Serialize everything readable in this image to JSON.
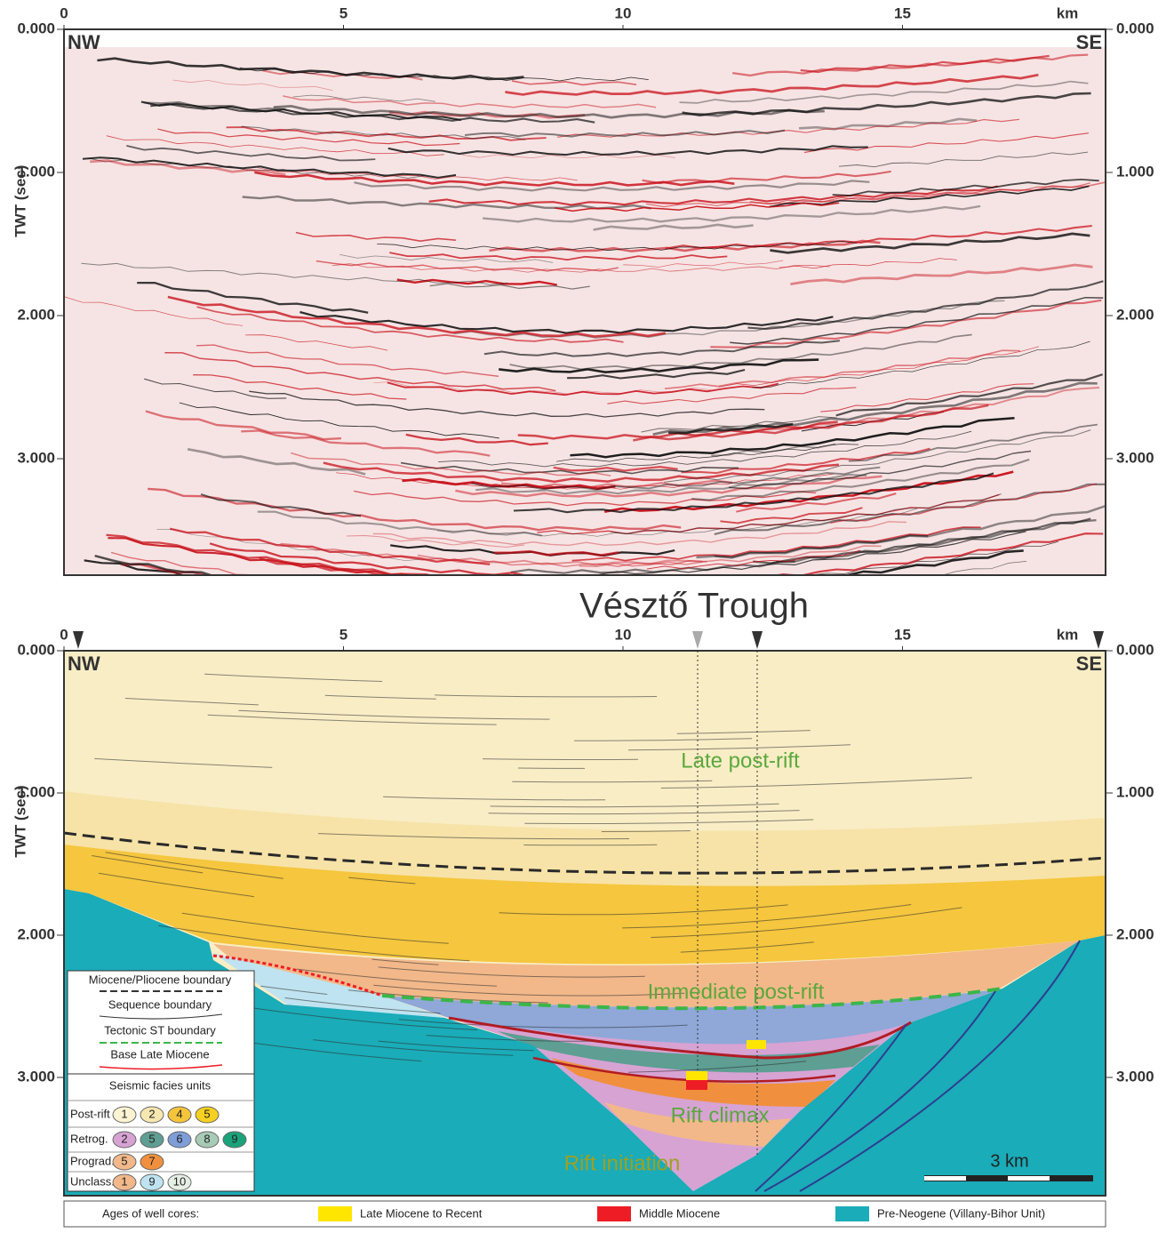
{
  "figure": {
    "x_ticks": [
      0,
      5,
      10,
      15
    ],
    "x_unit": "km",
    "y_ticks": [
      {
        "value": 0,
        "label": "0.000"
      },
      {
        "value": 1,
        "label": "1.000"
      },
      {
        "value": 2,
        "label": "2.000"
      },
      {
        "value": 3,
        "label": "3.000"
      }
    ],
    "y_label": "TWT (sec)",
    "left_end": "NW",
    "right_end": "SE",
    "title": "Vésztő Trough",
    "units": {
      "late_post_rift": "Late post-rift",
      "immediate_post_rift": "Immediate post-rift",
      "rift_climax": "Rift climax",
      "rift_initiation": "Rift initiation"
    },
    "scale_bar": "3 km",
    "legend": {
      "lines": [
        "Miocene/Pliocene boundary",
        "Sequence boundary",
        "Tectonic ST boundary",
        "Base Late Miocene"
      ],
      "facies_title": "Seismic facies units",
      "facies_rows": [
        {
          "name": "Post-rift",
          "units": [
            {
              "label": "1",
              "color": "#fbf3d2"
            },
            {
              "label": "2",
              "color": "#f6e7b0"
            },
            {
              "label": "4",
              "color": "#f4c43a"
            },
            {
              "label": "5",
              "color": "#f5d020"
            }
          ]
        },
        {
          "name": "Retrog.",
          "units": [
            {
              "label": "2",
              "color": "#d7a3d3"
            },
            {
              "label": "5",
              "color": "#5e9e93"
            },
            {
              "label": "6",
              "color": "#7f9ed8"
            },
            {
              "label": "8",
              "color": "#a7cbb6"
            },
            {
              "label": "9",
              "color": "#1aa37a"
            }
          ]
        },
        {
          "name": "Prograd.",
          "units": [
            {
              "label": "5",
              "color": "#f2b88a"
            },
            {
              "label": "7",
              "color": "#f0903e"
            }
          ]
        },
        {
          "name": "Unclass.",
          "units": [
            {
              "label": "1",
              "color": "#f2b88a"
            },
            {
              "label": "9",
              "color": "#bfe3f0"
            },
            {
              "label": "10",
              "color": "#e6efe6"
            }
          ]
        }
      ]
    },
    "well_cores": {
      "title": "Ages of well cores:",
      "items": [
        {
          "label": "Late Miocene to Recent",
          "color": "#ffe600"
        },
        {
          "label": "Middle Miocene",
          "color": "#ee1c24"
        },
        {
          "label": "Pre-Neogene (Villany-Bihor Unit)",
          "color": "#1aacb8"
        }
      ]
    }
  }
}
